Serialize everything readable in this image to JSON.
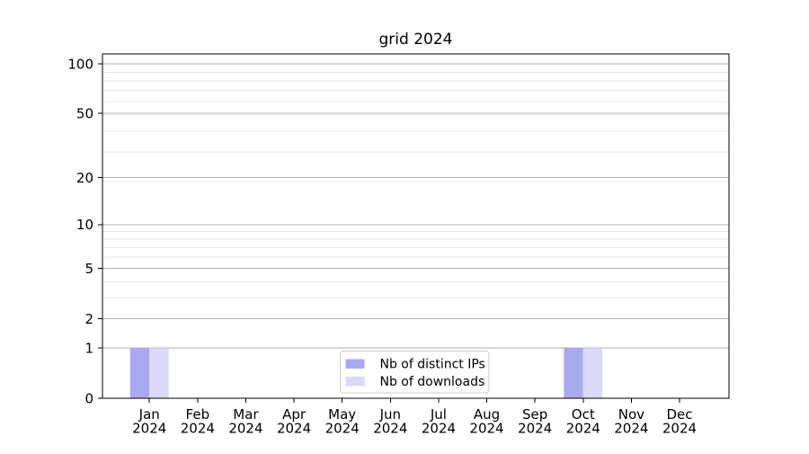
{
  "chart_data": {
    "type": "bar",
    "title": "grid 2024",
    "categories": [
      {
        "line1": "Jan",
        "line2": "2024"
      },
      {
        "line1": "Feb",
        "line2": "2024"
      },
      {
        "line1": "Mar",
        "line2": "2024"
      },
      {
        "line1": "Apr",
        "line2": "2024"
      },
      {
        "line1": "May",
        "line2": "2024"
      },
      {
        "line1": "Jun",
        "line2": "2024"
      },
      {
        "line1": "Jul",
        "line2": "2024"
      },
      {
        "line1": "Aug",
        "line2": "2024"
      },
      {
        "line1": "Sep",
        "line2": "2024"
      },
      {
        "line1": "Oct",
        "line2": "2024"
      },
      {
        "line1": "Nov",
        "line2": "2024"
      },
      {
        "line1": "Dec",
        "line2": "2024"
      }
    ],
    "series": [
      {
        "name": "Nb of distinct IPs",
        "color": "#a9a9f0",
        "values": [
          1,
          0,
          0,
          0,
          0,
          0,
          0,
          0,
          0,
          1,
          0,
          0
        ]
      },
      {
        "name": "Nb of downloads",
        "color": "#dadaf8",
        "values": [
          1,
          0,
          0,
          0,
          0,
          0,
          0,
          0,
          0,
          1,
          0,
          0
        ]
      }
    ],
    "yscale": "log1p",
    "ylim": [
      0,
      115
    ],
    "y_major_ticks": [
      0,
      1,
      2,
      5,
      10,
      20,
      50,
      100
    ],
    "y_minor_values": [
      3,
      4,
      6,
      7,
      8,
      9,
      19,
      29,
      39,
      49,
      59,
      69,
      79,
      89
    ],
    "grid": {
      "major_color": "#b2b2b2",
      "minor_color": "#e7e7e7"
    },
    "legend_position": "bottom-center",
    "bar_group_width": 0.8
  }
}
